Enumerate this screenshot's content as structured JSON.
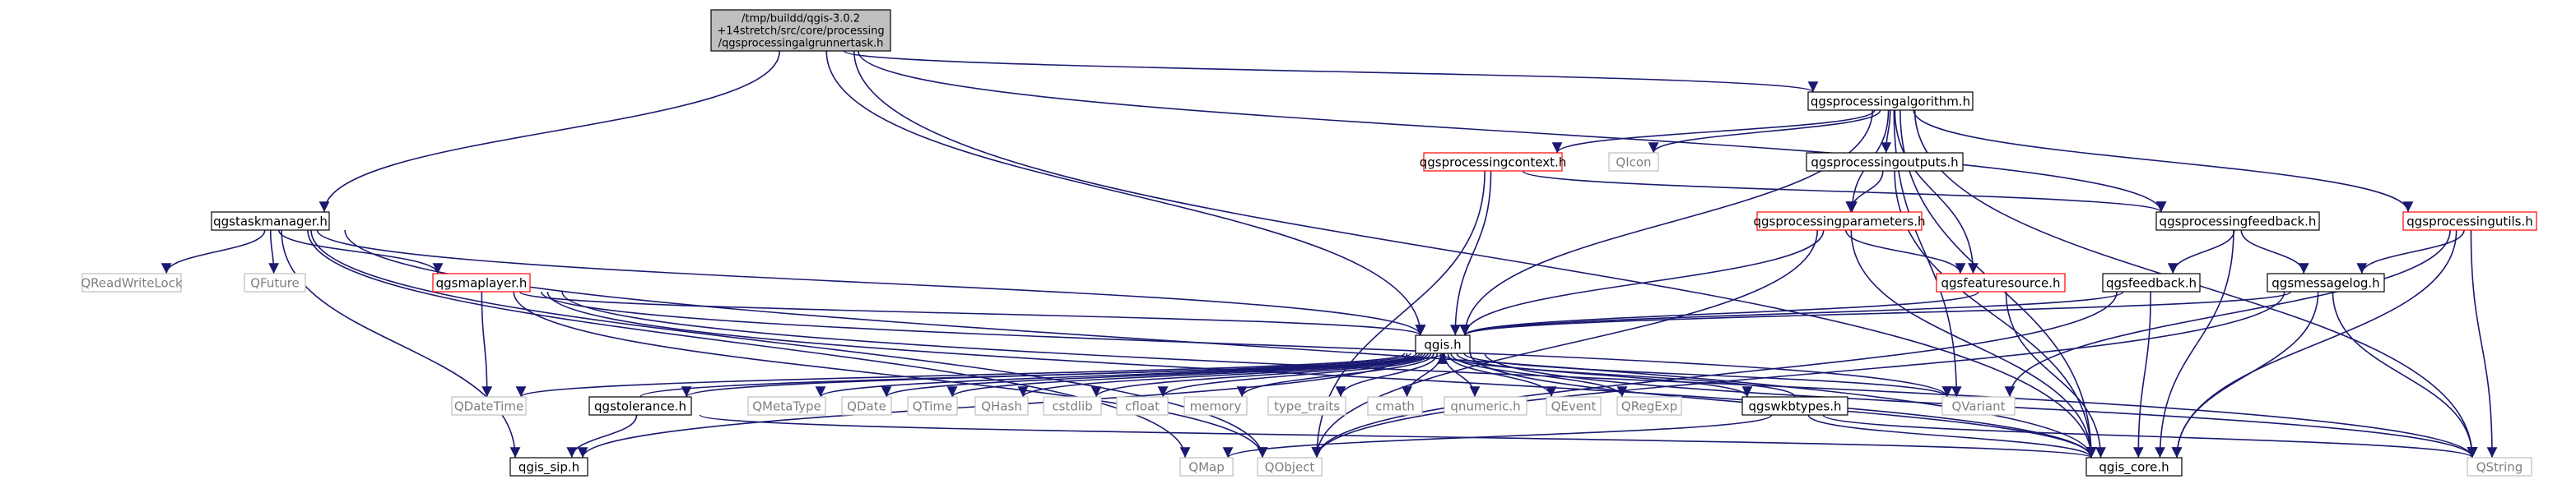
{
  "diagram": {
    "type": "include-dependency-graph",
    "colors": {
      "edge": "#191970",
      "root_fill": "#bfbfbf",
      "documented_border": "#000000",
      "undocumented_border": "#ff0000",
      "external_border": "#bfbfbf",
      "external_text": "#7f7f7f"
    },
    "nodes": {
      "root": "/tmp/buildd/qgis-3.0.2\n+14stretch/src/core/processing\n/qgsprocessingalgrunnertask.h",
      "alg": "qgsprocessingalgorithm.h",
      "taskmgr": "qgstaskmanager.h",
      "context": "qgsprocessingcontext.h",
      "qicon": "QIcon",
      "outputs": "qgsprocessingoutputs.h",
      "feedback": "qgsprocessingfeedback.h",
      "utils": "qgsprocessingutils.h",
      "rwlock": "QReadWriteLock",
      "qfuture": "QFuture",
      "maplayer": "qgsmaplayer.h",
      "params": "qgsprocessingparameters.h",
      "featsrc": "qgsfeaturesource.h",
      "gfeedback": "qgsfeedback.h",
      "msglog": "qgsmessagelog.h",
      "qgis": "qgis.h",
      "datetime": "QDateTime",
      "tolerance": "qgstolerance.h",
      "metatype": "QMetaType",
      "qdate": "QDate",
      "qtime": "QTime",
      "qhash": "QHash",
      "cstdlib": "cstdlib",
      "cfloat": "cfloat",
      "memory": "memory",
      "typetraits": "type_traits",
      "cmath": "cmath",
      "qnumeric": "qnumeric.h",
      "qevent": "QEvent",
      "qregexp": "QRegExp",
      "wkbtypes": "qgswkbtypes.h",
      "qvariant": "QVariant",
      "sip": "qgis_sip.h",
      "qmap": "QMap",
      "qobject": "QObject",
      "core": "qgis_core.h",
      "qstring": "QString"
    }
  }
}
